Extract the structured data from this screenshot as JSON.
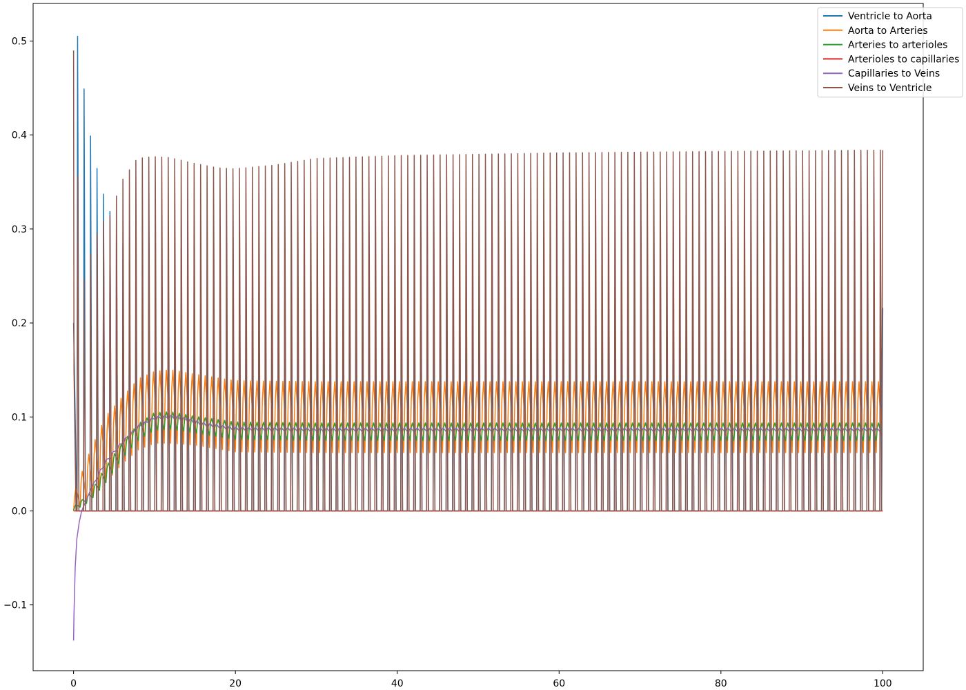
{
  "chart_data": {
    "type": "line",
    "title": "",
    "xlabel": "",
    "ylabel": "",
    "xlim": [
      -5,
      105
    ],
    "ylim": [
      -0.17,
      0.54
    ],
    "x_ticks": [
      0,
      20,
      40,
      60,
      80,
      100
    ],
    "x_tick_labels": [
      "0",
      "20",
      "40",
      "60",
      "80",
      "100"
    ],
    "y_ticks": [
      -0.1,
      0.0,
      0.1,
      0.2,
      0.3,
      0.4,
      0.5
    ],
    "y_tick_labels": [
      "−0.1",
      "0.0",
      "0.1",
      "0.2",
      "0.3",
      "0.4",
      "0.5"
    ],
    "grid": false,
    "legend_position": "top-right",
    "period": 0.8,
    "x_range": [
      0,
      100
    ],
    "series": [
      {
        "name": "Ventricle to Aorta",
        "color": "#1f77b4",
        "kind": "pulse",
        "peak_envelope": {
          "x": [
            0.8,
            1.6,
            2.4,
            3.2,
            4,
            6,
            8,
            10,
            12,
            15,
            18,
            22,
            25,
            30,
            40,
            60,
            100
          ],
          "y": [
            0.505,
            0.435,
            0.39,
            0.358,
            0.332,
            0.29,
            0.245,
            0.205,
            0.205,
            0.2,
            0.21,
            0.222,
            0.225,
            0.222,
            0.218,
            0.217,
            0.216
          ]
        },
        "low_envelope": {
          "x": [
            0,
            2,
            4,
            6,
            8,
            10,
            12,
            15,
            20,
            30,
            50,
            100
          ],
          "y": [
            0.0,
            0.0,
            0.0,
            0.0,
            0.0,
            0.0,
            0.0,
            0.0,
            0.0,
            0.0,
            0.0,
            0.0
          ]
        },
        "start": {
          "x": [
            0,
            0.4
          ],
          "y": [
            0.2,
            0.0
          ]
        }
      },
      {
        "name": "Aorta to Arteries",
        "color": "#ff7f0e",
        "kind": "wave",
        "peak_envelope": {
          "x": [
            0,
            2,
            4,
            6,
            8,
            10,
            12,
            15,
            20,
            30,
            50,
            100
          ],
          "y": [
            0.02,
            0.07,
            0.11,
            0.13,
            0.15,
            0.158,
            0.16,
            0.155,
            0.148,
            0.147,
            0.147,
            0.147
          ]
        },
        "low_envelope": {
          "x": [
            0,
            2,
            4,
            6,
            8,
            10,
            12,
            15,
            20,
            30,
            50,
            100
          ],
          "y": [
            0.0,
            0.01,
            0.03,
            0.05,
            0.065,
            0.072,
            0.072,
            0.07,
            0.063,
            0.062,
            0.062,
            0.062
          ]
        }
      },
      {
        "name": "Arteries to arterioles",
        "color": "#2ca02c",
        "kind": "wave",
        "peak_envelope": {
          "x": [
            0,
            2,
            4,
            6,
            8,
            10,
            12,
            15,
            20,
            30,
            50,
            100
          ],
          "y": [
            0.005,
            0.02,
            0.05,
            0.075,
            0.095,
            0.107,
            0.108,
            0.103,
            0.097,
            0.096,
            0.096,
            0.096
          ]
        },
        "low_envelope": {
          "x": [
            0,
            2,
            4,
            6,
            8,
            10,
            12,
            15,
            20,
            30,
            50,
            100
          ],
          "y": [
            0.0,
            0.01,
            0.03,
            0.055,
            0.075,
            0.086,
            0.087,
            0.083,
            0.076,
            0.075,
            0.075,
            0.075
          ]
        }
      },
      {
        "name": "Arterioles to capillaries",
        "color": "#d62728",
        "kind": "flat",
        "x": [
          0,
          100
        ],
        "y": [
          0.0,
          0.0
        ]
      },
      {
        "name": "Capillaries to Veins",
        "color": "#9467bd",
        "kind": "wave",
        "start": {
          "x": [
            0,
            0.05,
            0.2,
            0.4,
            0.7,
            1.0,
            1.5,
            2.0,
            2.5,
            3.0
          ],
          "y": [
            -0.138,
            -0.11,
            -0.06,
            -0.03,
            -0.012,
            0.0,
            0.01,
            0.02,
            0.03,
            0.035
          ]
        },
        "peak_envelope": {
          "x": [
            3,
            4,
            6,
            8,
            10,
            12,
            14,
            16,
            20,
            30,
            50,
            100
          ],
          "y": [
            0.04,
            0.055,
            0.075,
            0.092,
            0.101,
            0.103,
            0.1,
            0.095,
            0.09,
            0.089,
            0.089,
            0.089
          ]
        },
        "low_envelope": {
          "x": [
            3,
            4,
            6,
            8,
            10,
            12,
            14,
            16,
            20,
            30,
            50,
            100
          ],
          "y": [
            0.035,
            0.05,
            0.07,
            0.087,
            0.096,
            0.097,
            0.094,
            0.089,
            0.084,
            0.083,
            0.083,
            0.083
          ]
        }
      },
      {
        "name": "Veins to Ventricle",
        "color": "#8c564b",
        "kind": "pulse",
        "peak_envelope": {
          "x": [
            0,
            1.2,
            2.6,
            3.6,
            4.5,
            6,
            8,
            10,
            12,
            15,
            18,
            20,
            25,
            30,
            40,
            60,
            100
          ],
          "y": [
            0.49,
            0.24,
            0.285,
            0.307,
            0.31,
            0.35,
            0.375,
            0.377,
            0.376,
            0.37,
            0.365,
            0.364,
            0.368,
            0.375,
            0.378,
            0.381,
            0.384
          ]
        },
        "low_envelope": {
          "x": [
            0,
            2,
            4,
            6,
            8,
            10,
            12,
            15,
            20,
            30,
            50,
            100
          ],
          "y": [
            0.0,
            0.0,
            0.0,
            0.0,
            0.0,
            0.0,
            0.0,
            0.0,
            0.0,
            0.0,
            0.0,
            0.0
          ]
        },
        "start": {
          "x": [
            0,
            0.05,
            0.3
          ],
          "y": [
            0.49,
            0.15,
            0.0
          ]
        }
      }
    ]
  }
}
